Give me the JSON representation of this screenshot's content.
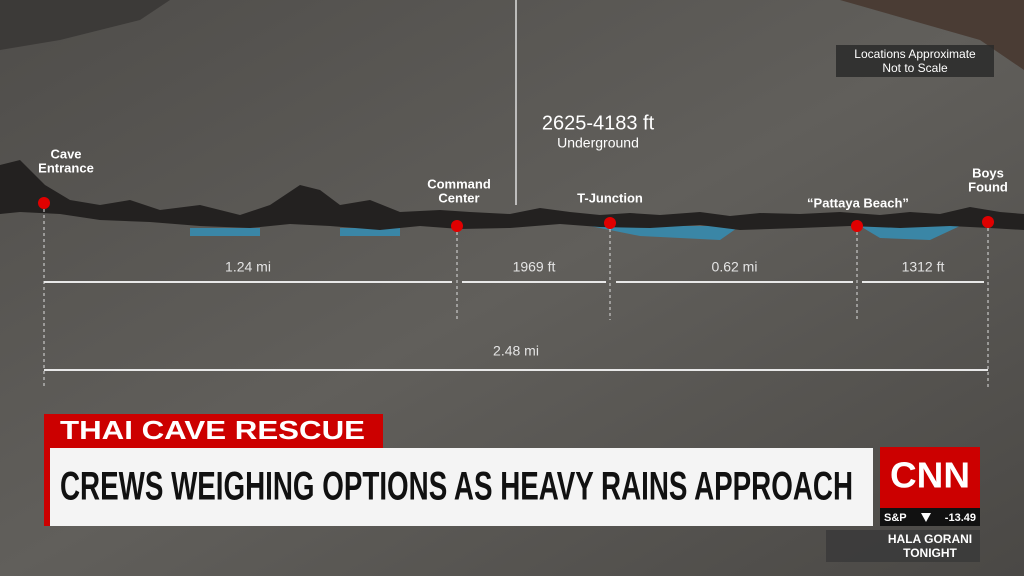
{
  "note": [
    "Locations Approximate",
    "Not to Scale"
  ],
  "depth": {
    "range": "2625-4183 ft",
    "label": "Underground"
  },
  "locations": [
    {
      "label": [
        "Cave",
        "Entrance"
      ]
    },
    {
      "label": [
        "Command",
        "Center"
      ]
    },
    {
      "label": [
        "T-Junction"
      ]
    },
    {
      "label": [
        "“Pattaya Beach”"
      ]
    },
    {
      "label": [
        "Boys",
        "Found"
      ]
    }
  ],
  "segments": [
    "1.24 mi",
    "1969 ft",
    "0.62 mi",
    "1312 ft"
  ],
  "total": "2.48 mi",
  "banner": {
    "kicker": "THAI CAVE RESCUE",
    "headline": "CREWS WEIGHING OPTIONS AS HEAVY RAINS APPROACH"
  },
  "network": {
    "logo": "CNN",
    "ticker": {
      "index": "S&P",
      "change": "-13.49"
    },
    "show": [
      "HALA GORANI",
      "TONIGHT"
    ]
  }
}
